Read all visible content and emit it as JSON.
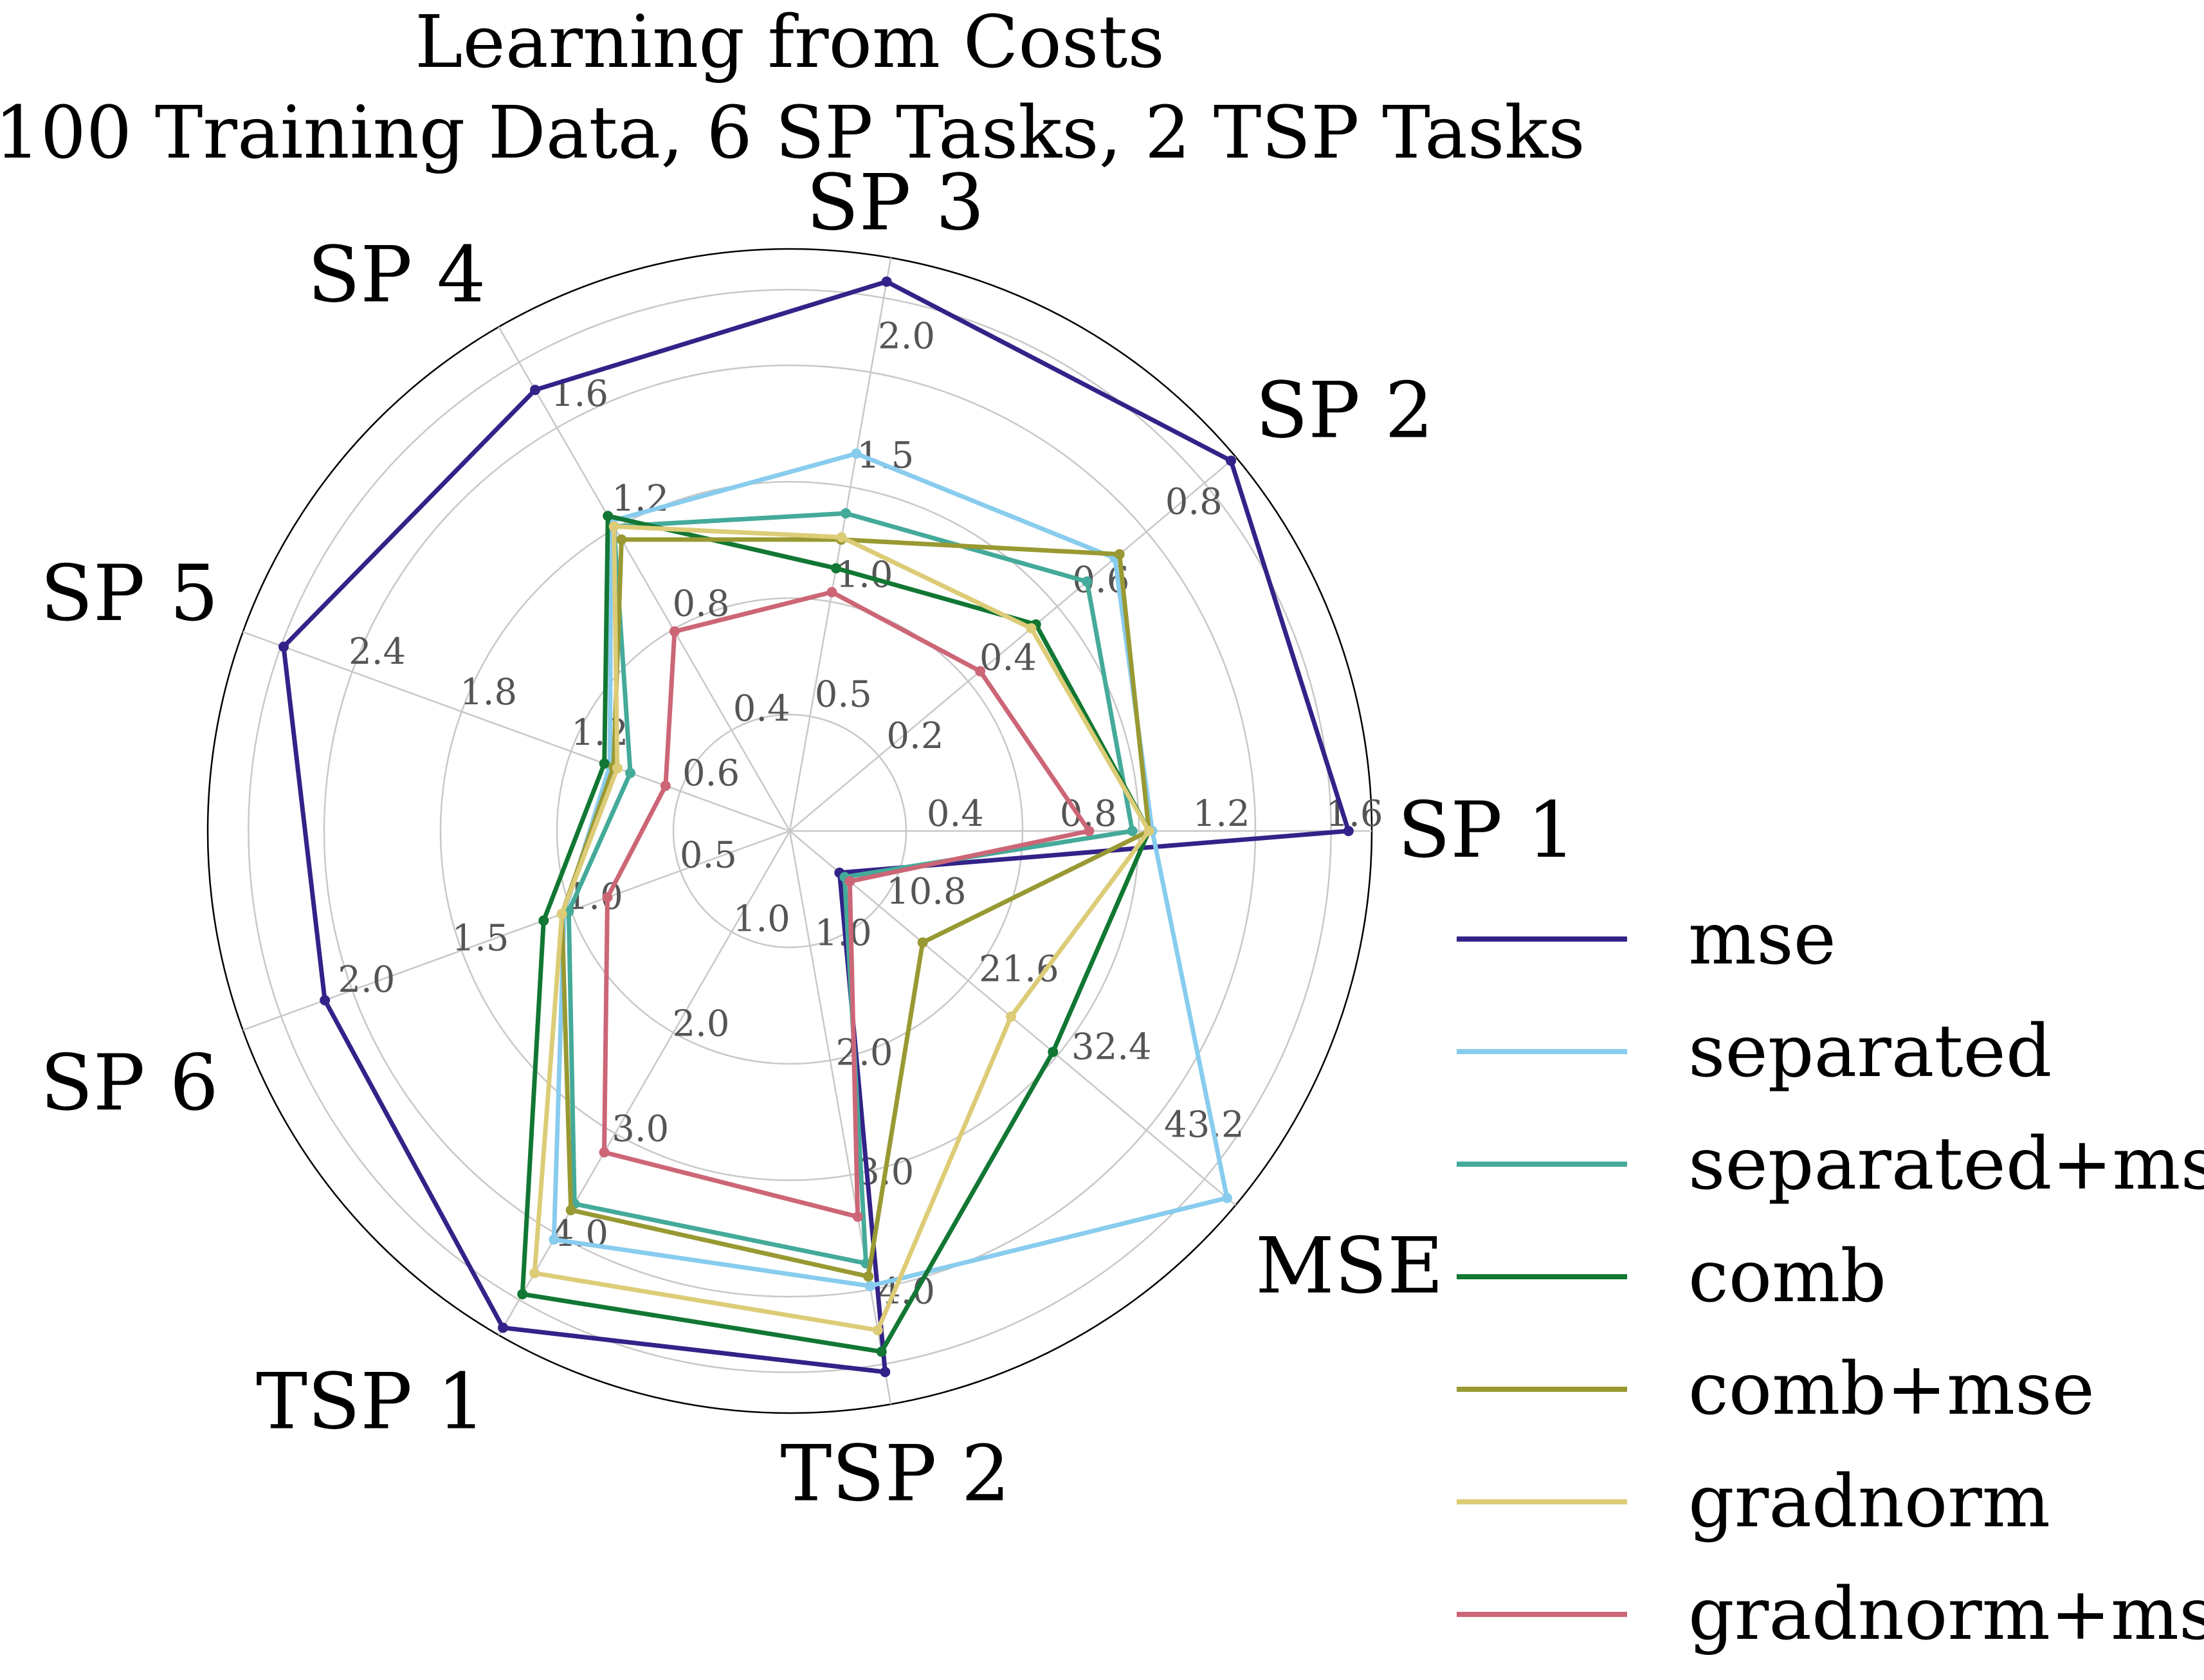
{
  "chart_data": {
    "type": "radar",
    "title": "Learning from Costs",
    "subtitle": "100 Training Data, 6 SP Tasks, 2 TSP Tasks",
    "axes": [
      {
        "name": "SP 1",
        "range": [
          0,
          1.75
        ],
        "ticks": [
          "0.4",
          "0.8",
          "1.2",
          "1.6"
        ],
        "tick_values": [
          0.4,
          0.8,
          1.2,
          1.6
        ]
      },
      {
        "name": "SP 2",
        "range": [
          0,
          0.96
        ],
        "ticks": [
          "0.2",
          "0.4",
          "0.6",
          "0.8"
        ],
        "tick_values": [
          0.2,
          0.4,
          0.6,
          0.8
        ]
      },
      {
        "name": "SP 3",
        "range": [
          0,
          2.4
        ],
        "ticks": [
          "0.5",
          "1.0",
          "1.5",
          "2.0"
        ],
        "tick_values": [
          0.5,
          1.0,
          1.5,
          2.0
        ]
      },
      {
        "name": "SP 4",
        "range": [
          0,
          1.92
        ],
        "ticks": [
          "0.4",
          "0.8",
          "1.2",
          "1.6"
        ],
        "tick_values": [
          0.4,
          0.8,
          1.2,
          1.6
        ]
      },
      {
        "name": "SP 5",
        "range": [
          0,
          2.95
        ],
        "ticks": [
          "0.6",
          "1.2",
          "1.8",
          "2.4"
        ],
        "tick_values": [
          0.6,
          1.2,
          1.8,
          2.4
        ]
      },
      {
        "name": "SP 6",
        "range": [
          0,
          2.4
        ],
        "ticks": [
          "0.5",
          "1.0",
          "1.5",
          "2.0"
        ],
        "tick_values": [
          0.5,
          1.0,
          1.5,
          2.0
        ]
      },
      {
        "name": "TSP 1",
        "range": [
          0,
          4.8
        ],
        "ticks": [
          "1.0",
          "2.0",
          "3.0",
          "4.0"
        ],
        "tick_values": [
          1.0,
          2.0,
          3.0,
          4.0
        ]
      },
      {
        "name": "TSP 2",
        "range": [
          0,
          4.8
        ],
        "ticks": [
          "1.0",
          "2.0",
          "3.0",
          "4.0"
        ],
        "tick_values": [
          1.0,
          2.0,
          3.0,
          4.0
        ]
      },
      {
        "name": "MSE",
        "range": [
          0,
          52
        ],
        "ticks": [
          "10.8",
          "21.6",
          "32.4",
          "43.2"
        ],
        "tick_values": [
          10.8,
          21.6,
          32.4,
          43.2
        ]
      }
    ],
    "series": [
      {
        "name": "mse",
        "color": "#332288",
        "values": [
          1.68,
          0.95,
          2.3,
          1.68,
          2.73,
          2.04,
          4.73,
          4.53,
          5.8
        ]
      },
      {
        "name": "separated",
        "color": "#88ccee",
        "values": [
          1.09,
          0.7,
          1.58,
          1.18,
          0.97,
          0.99,
          3.89,
          3.81,
          51.0
        ]
      },
      {
        "name": "separated+mse",
        "color": "#44aa99",
        "values": [
          1.03,
          0.64,
          1.33,
          1.16,
          0.86,
          0.97,
          3.55,
          3.62,
          6.4
        ]
      },
      {
        "name": "comb",
        "color": "#117733",
        "values": [
          1.08,
          0.53,
          1.1,
          1.2,
          1.0,
          1.08,
          4.41,
          4.36,
          30.7
        ]
      },
      {
        "name": "comb+mse",
        "color": "#999933",
        "values": [
          1.08,
          0.71,
          1.22,
          1.11,
          0.95,
          1.0,
          3.61,
          3.73,
          15.5
        ]
      },
      {
        "name": "gradnorm",
        "color": "#ddcc77",
        "values": [
          1.08,
          0.52,
          1.23,
          1.16,
          0.93,
          1.0,
          4.21,
          4.18,
          25.8
        ]
      },
      {
        "name": "gradnorm+mse",
        "color": "#cc6677",
        "values": [
          0.9,
          0.41,
          1.0,
          0.76,
          0.67,
          0.8,
          3.06,
          3.23,
          7.0
        ]
      }
    ],
    "grid": true,
    "legend_position": "right"
  }
}
